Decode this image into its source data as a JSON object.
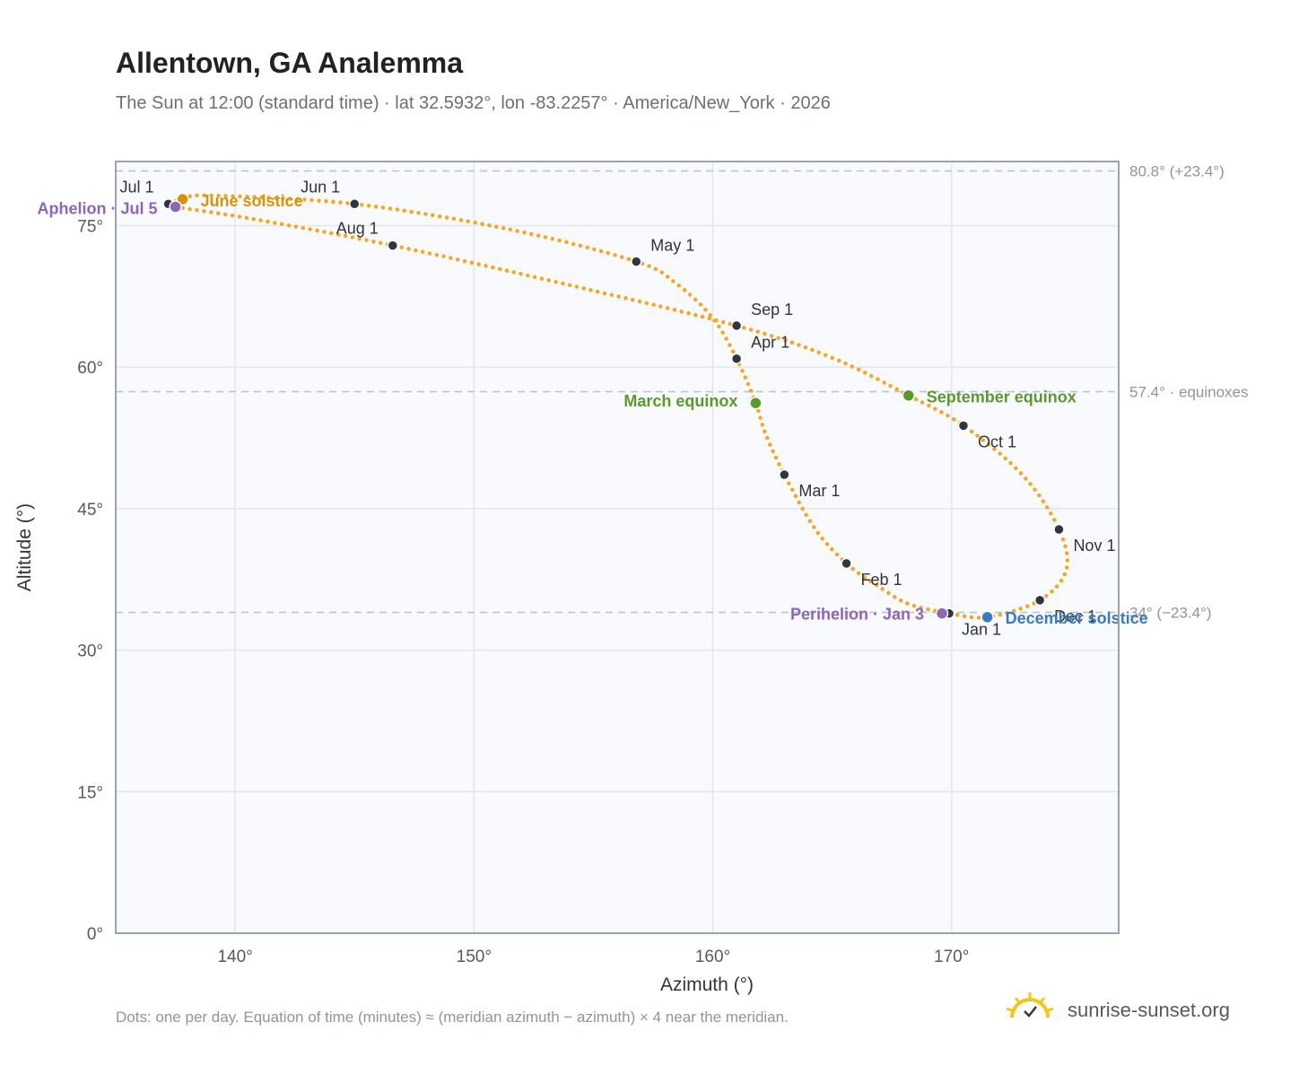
{
  "header": {
    "title": "Allentown, GA Analemma",
    "subtitle": "The Sun at 12:00 (standard time) · lat 32.5932°, lon -83.2257° · America/New_York · 2026"
  },
  "footer": {
    "note": "Dots: one per day. Equation of time (minutes) ≈ (meridian azimuth − azimuth) × 4 near the meridian.",
    "brand": "sunrise-sunset.org"
  },
  "colors": {
    "curve": "#f5a623",
    "month_dot": "#2f3640",
    "equinox": "#5a9a2c",
    "june_solstice": "#d4940f",
    "december_solstice": "#3a7bbf",
    "apsis": "#8e66b8",
    "grid": "#e3e7ec",
    "plot_bg": "#f8fafd",
    "frame": "#9aa3ae",
    "ref_line": "#b9c2cb"
  },
  "chart_data": {
    "type": "scatter",
    "xlabel": "Azimuth (°)",
    "ylabel": "Altitude (°)",
    "xlim": [
      135,
      177
    ],
    "ylim": [
      0,
      81.8
    ],
    "x_ticks": [
      140,
      150,
      160,
      170
    ],
    "x_tick_labels": [
      "140°",
      "150°",
      "160°",
      "170°"
    ],
    "y_ticks": [
      0,
      15,
      30,
      45,
      60,
      75
    ],
    "y_tick_labels": [
      "0°",
      "15°",
      "30°",
      "45°",
      "60°",
      "75°"
    ],
    "grid": true,
    "reference_lines": [
      {
        "altitude": 80.8,
        "label": "80.8° (+23.4°)"
      },
      {
        "altitude": 57.4,
        "label": "57.4° · equinoxes"
      },
      {
        "altitude": 34.0,
        "label": "34° (−23.4°)"
      }
    ],
    "month_points": [
      {
        "label": "Jan 1",
        "az": 169.9,
        "alt": 33.9
      },
      {
        "label": "Feb 1",
        "az": 165.6,
        "alt": 39.2
      },
      {
        "label": "Mar 1",
        "az": 163.0,
        "alt": 48.6
      },
      {
        "label": "Apr 1",
        "az": 161.0,
        "alt": 60.9
      },
      {
        "label": "May 1",
        "az": 156.8,
        "alt": 71.2
      },
      {
        "label": "Jun 1",
        "az": 145.0,
        "alt": 77.3
      },
      {
        "label": "Jul 1",
        "az": 137.2,
        "alt": 77.3
      },
      {
        "label": "Aug 1",
        "az": 146.6,
        "alt": 72.9
      },
      {
        "label": "Sep 1",
        "az": 161.0,
        "alt": 64.4
      },
      {
        "label": "Oct 1",
        "az": 170.5,
        "alt": 53.8
      },
      {
        "label": "Nov 1",
        "az": 174.5,
        "alt": 42.8
      },
      {
        "label": "Dec 1",
        "az": 173.7,
        "alt": 35.3
      }
    ],
    "events": [
      {
        "label": "March equinox",
        "az": 161.8,
        "alt": 56.2,
        "kind": "equinox"
      },
      {
        "label": "September equinox",
        "az": 168.2,
        "alt": 57.0,
        "kind": "equinox"
      },
      {
        "label": "June solstice",
        "az": 137.8,
        "alt": 77.8,
        "kind": "june_solstice"
      },
      {
        "label": "December solstice",
        "az": 171.5,
        "alt": 33.5,
        "kind": "december_solstice"
      },
      {
        "label": "Aphelion · Jul 5",
        "az": 137.5,
        "alt": 77.0,
        "kind": "apsis"
      },
      {
        "label": "Perihelion · Jan 3",
        "az": 169.6,
        "alt": 33.9,
        "kind": "apsis"
      }
    ],
    "curve_points": [
      {
        "az": 169.9,
        "alt": 33.9
      },
      {
        "az": 168.2,
        "alt": 34.9
      },
      {
        "az": 166.8,
        "alt": 37.0
      },
      {
        "az": 165.6,
        "alt": 39.2
      },
      {
        "az": 164.3,
        "alt": 42.8
      },
      {
        "az": 163.0,
        "alt": 48.6
      },
      {
        "az": 162.2,
        "alt": 53.0
      },
      {
        "az": 161.8,
        "alt": 56.2
      },
      {
        "az": 161.0,
        "alt": 60.9
      },
      {
        "az": 160.0,
        "alt": 65.2
      },
      {
        "az": 158.5,
        "alt": 68.8
      },
      {
        "az": 156.8,
        "alt": 71.2
      },
      {
        "az": 151.5,
        "alt": 74.6
      },
      {
        "az": 145.0,
        "alt": 77.3
      },
      {
        "az": 139.0,
        "alt": 78.2
      },
      {
        "az": 137.8,
        "alt": 77.8
      },
      {
        "az": 137.2,
        "alt": 77.3
      },
      {
        "az": 137.5,
        "alt": 77.0
      },
      {
        "az": 141.0,
        "alt": 75.6
      },
      {
        "az": 146.6,
        "alt": 72.9
      },
      {
        "az": 154.0,
        "alt": 68.7
      },
      {
        "az": 161.0,
        "alt": 64.4
      },
      {
        "az": 165.0,
        "alt": 61.0
      },
      {
        "az": 168.2,
        "alt": 57.0
      },
      {
        "az": 170.5,
        "alt": 53.8
      },
      {
        "az": 173.0,
        "alt": 48.5
      },
      {
        "az": 174.5,
        "alt": 42.8
      },
      {
        "az": 174.8,
        "alt": 38.5
      },
      {
        "az": 173.7,
        "alt": 35.3
      },
      {
        "az": 171.5,
        "alt": 33.5
      },
      {
        "az": 169.9,
        "alt": 33.9
      }
    ]
  }
}
